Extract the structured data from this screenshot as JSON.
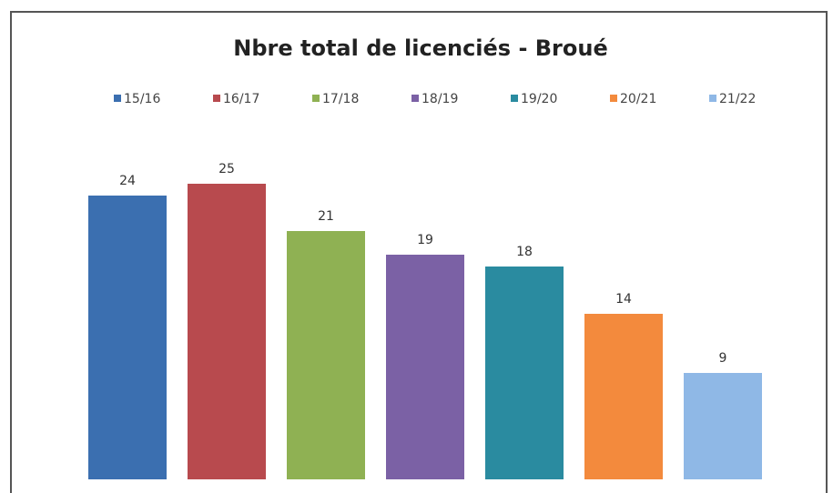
{
  "chart_data": {
    "type": "bar",
    "title": "Nbre total de licenciés - Broué",
    "series": [
      {
        "name": "15/16",
        "color": "#3b6fb0",
        "values": [
          24
        ]
      },
      {
        "name": "16/17",
        "color": "#b84a4e",
        "values": [
          25
        ]
      },
      {
        "name": "17/18",
        "color": "#8fb153",
        "values": [
          21
        ]
      },
      {
        "name": "18/19",
        "color": "#7b61a5",
        "values": [
          19
        ]
      },
      {
        "name": "19/20",
        "color": "#2a8ba0",
        "values": [
          18
        ]
      },
      {
        "name": "20/21",
        "color": "#f38a3d",
        "values": [
          14
        ]
      },
      {
        "name": "21/22",
        "color": "#8fb8e6",
        "values": [
          9
        ]
      }
    ]
  }
}
